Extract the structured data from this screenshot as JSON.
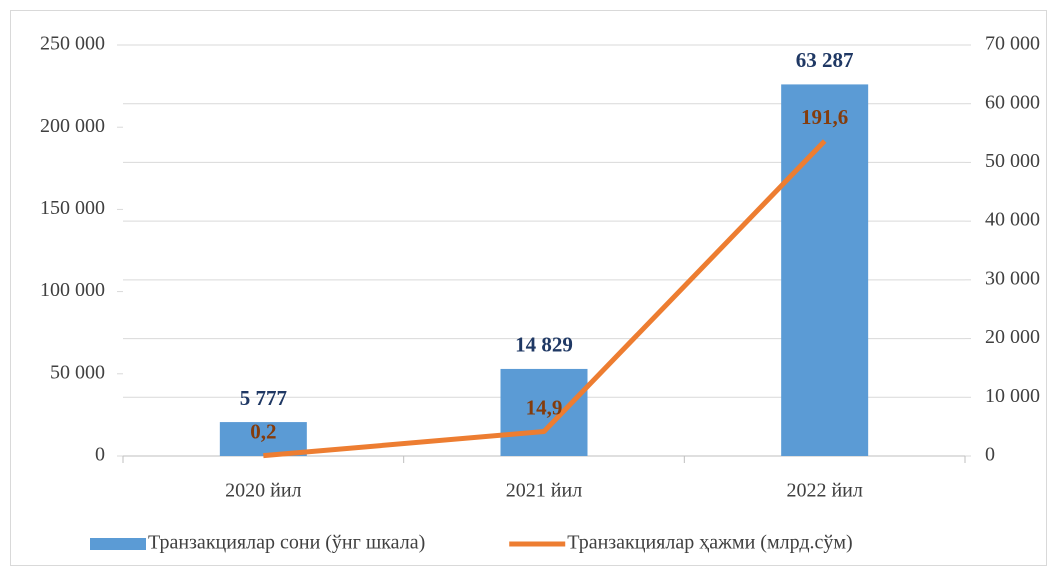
{
  "chart_data": {
    "type": "combo",
    "categories": [
      "2020 йил",
      "2021 йил",
      "2022 йил"
    ],
    "series": [
      {
        "name": "Транзакциялар сони (ўнг шкала)",
        "type": "bar",
        "axis": "y2",
        "color": "#5b9bd5",
        "values": [
          5777,
          14829,
          63287
        ],
        "value_labels": [
          "5 777",
          "14 829",
          "63 287"
        ],
        "label_color": "#1f3864"
      },
      {
        "name": "Транзакциялар ҳажми (млрд.сўм)",
        "type": "line",
        "color": "#ed7d31",
        "values": [
          200,
          14900,
          191600
        ],
        "value_labels": [
          "0,2",
          "14,9",
          "191,6"
        ],
        "label_color": "#843c0c"
      }
    ],
    "ylim": [
      0,
      250000
    ],
    "yticks": [
      0,
      {
        "value": 50000,
        "label": "50 000"
      },
      {
        "value": 100000,
        "label": "100 000"
      },
      {
        "value": 150000,
        "label": "150 000"
      },
      {
        "value": 200000,
        "label": "200 000"
      },
      {
        "value": 250000,
        "label": "250 000"
      }
    ],
    "y2lim": [
      0,
      70000
    ],
    "y2ticks": [
      0,
      {
        "value": 10000,
        "label": "10 000"
      },
      {
        "value": 20000,
        "label": "20 000"
      },
      {
        "value": 30000,
        "label": "30 000"
      },
      {
        "value": 40000,
        "label": "40 000"
      },
      {
        "value": 50000,
        "label": "50 000"
      },
      {
        "value": 60000,
        "label": "60 000"
      },
      {
        "value": 70000,
        "label": "70 000"
      }
    ],
    "grid": true,
    "legend": "bottom"
  }
}
